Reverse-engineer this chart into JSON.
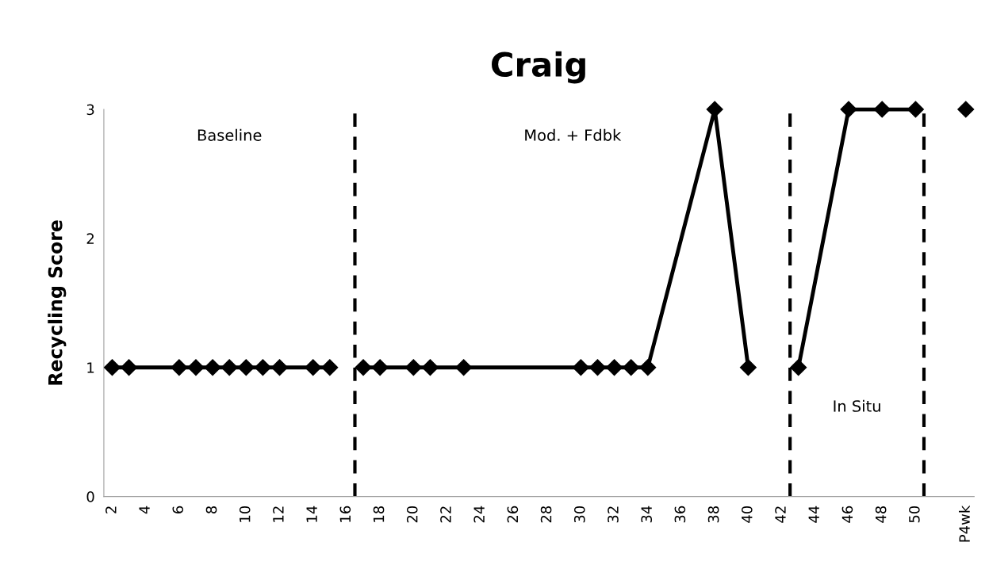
{
  "chart_data": {
    "type": "line",
    "title": "Craig",
    "ylabel": "Recycling Score",
    "xlim": [
      1.5,
      53.5
    ],
    "ylim": [
      0,
      3
    ],
    "xticks": [
      2,
      4,
      6,
      8,
      10,
      12,
      14,
      16,
      18,
      20,
      22,
      24,
      26,
      28,
      30,
      32,
      34,
      36,
      38,
      40,
      42,
      44,
      46,
      48,
      50,
      {
        "value": 53,
        "label": "P4wk"
      }
    ],
    "yticks": [
      0,
      1,
      2,
      3
    ],
    "series": [
      {
        "color": "#000000",
        "x": [
          2,
          3,
          6,
          7,
          8,
          9,
          10,
          11,
          12,
          14,
          15
        ],
        "values": [
          1,
          1,
          1,
          1,
          1,
          1,
          1,
          1,
          1,
          1,
          1
        ]
      },
      {
        "color": "#000000",
        "x": [
          17,
          18,
          20,
          21,
          23,
          30,
          31,
          32,
          33,
          34,
          38,
          40
        ],
        "values": [
          1,
          1,
          1,
          1,
          1,
          1,
          1,
          1,
          1,
          1,
          3,
          1
        ]
      },
      {
        "color": "#000000",
        "x": [
          43,
          46,
          48,
          50
        ],
        "values": [
          1,
          3,
          3,
          3
        ]
      },
      {
        "color": "#000000",
        "x": [
          53
        ],
        "values": [
          3
        ]
      }
    ],
    "marker": "diamond",
    "line_style": "solid",
    "grid": false,
    "legend": false,
    "ref_lines": [
      {
        "axis": "x",
        "value": 16.5,
        "color": "#000000",
        "line_style": "dashed"
      },
      {
        "axis": "x",
        "value": 42.5,
        "color": "#000000",
        "line_style": "dashed"
      },
      {
        "axis": "x",
        "value": 50.5,
        "color": "#000000",
        "line_style": "dashed"
      }
    ],
    "annotations": [
      "Baseline",
      "Mod. + Fdbk",
      "In Situ"
    ]
  }
}
